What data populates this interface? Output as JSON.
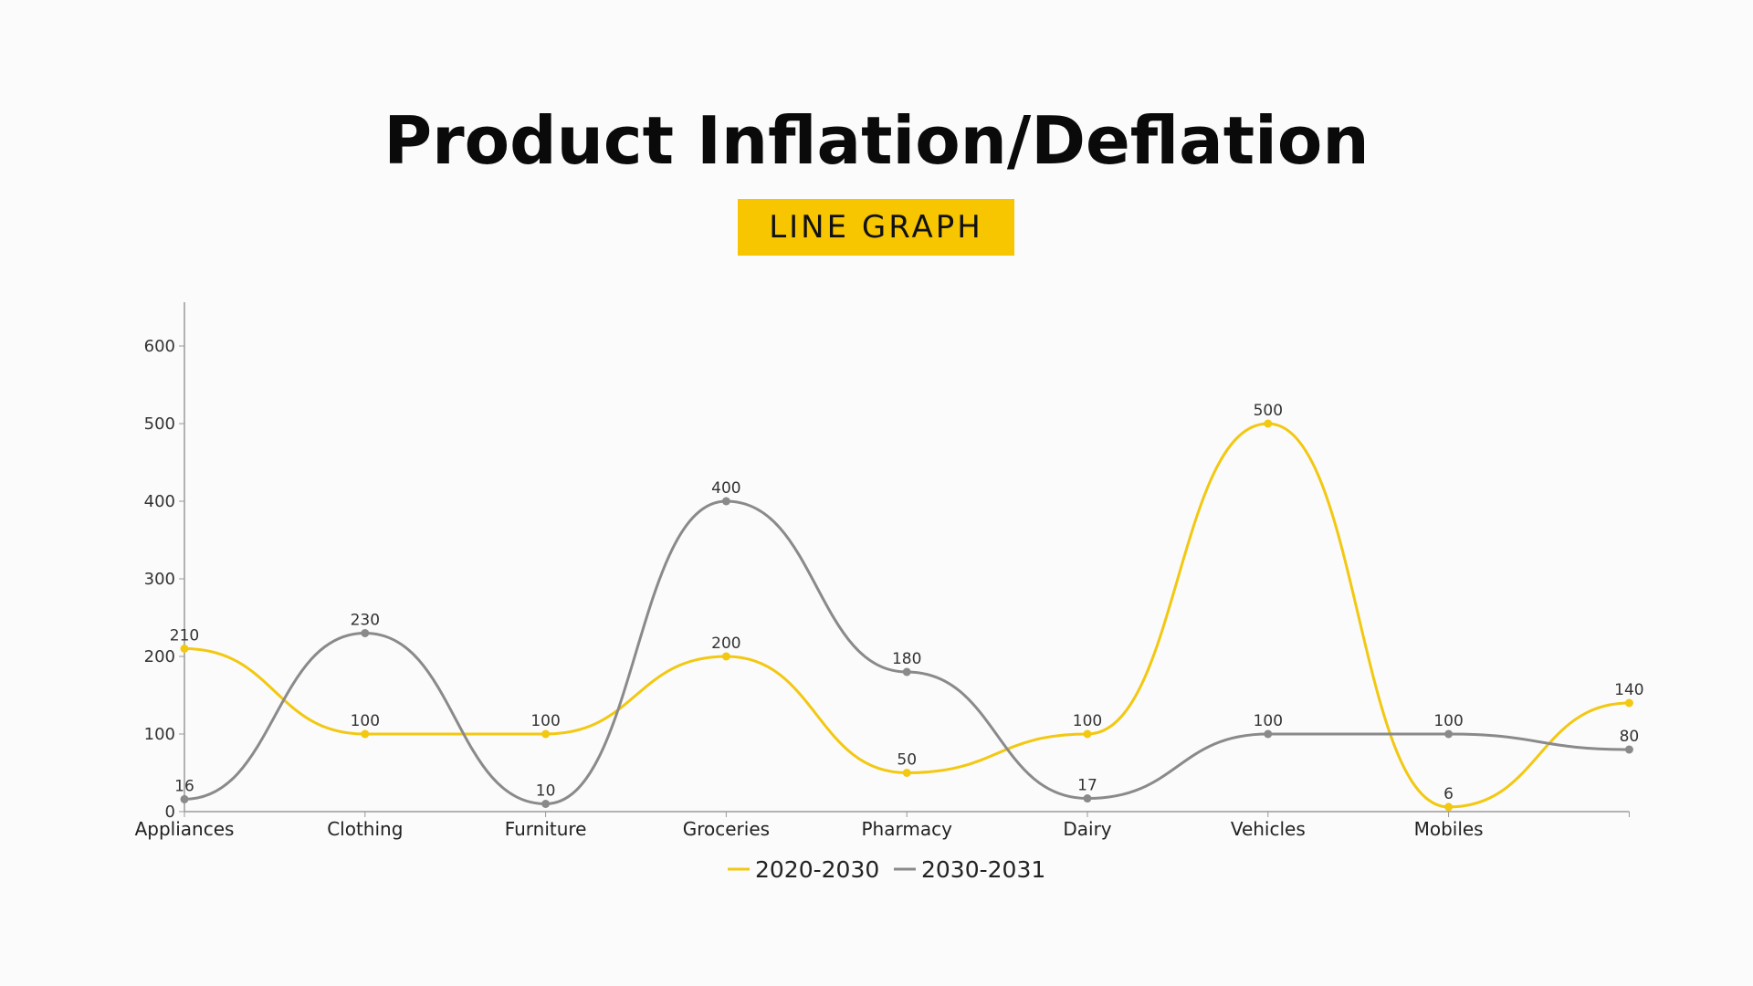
{
  "chart_data": {
    "type": "line",
    "title": "Product Inflation/Deflation",
    "subtitle": "LINE GRAPH",
    "categories": [
      "Appliances",
      "Clothing",
      "Furniture",
      "Groceries",
      "Pharmacy",
      "Dairy",
      "Vehicles",
      "Mobiles",
      ""
    ],
    "series": [
      {
        "name": "2020-2030",
        "color": "#f2c811",
        "values": [
          210,
          100,
          100,
          200,
          50,
          100,
          500,
          6,
          140
        ]
      },
      {
        "name": "2030-2031",
        "color": "#8a8a8a",
        "values": [
          16,
          230,
          10,
          400,
          180,
          17,
          100,
          100,
          80
        ]
      }
    ],
    "ylim": [
      0,
      600
    ],
    "yticks": [
      0,
      100,
      200,
      300,
      400,
      500,
      600
    ],
    "xlabel": "",
    "ylabel": "",
    "grid": false,
    "smooth": true,
    "legend": "bottom"
  }
}
